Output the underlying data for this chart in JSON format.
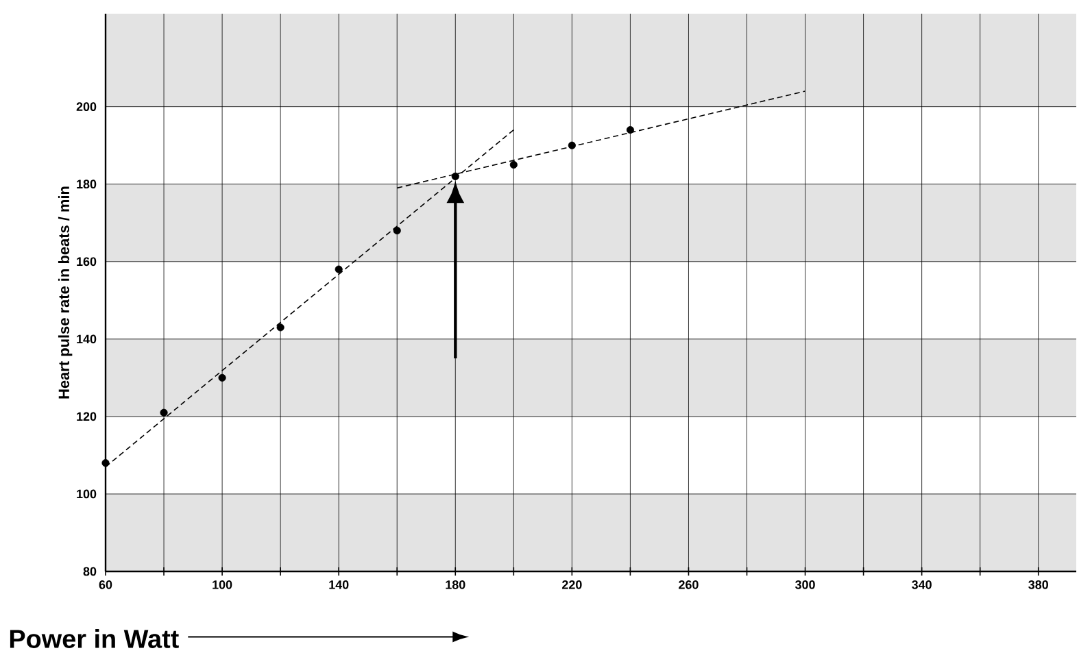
{
  "chart_data": {
    "type": "scatter",
    "xlabel": "Power in Watt",
    "ylabel": "Heart pulse rate in beats / min",
    "xlim": [
      60,
      393
    ],
    "ylim": [
      80,
      224
    ],
    "xticks": [
      60,
      {
        "value": 80,
        "label": null
      },
      100,
      {
        "value": 120,
        "label": null
      },
      140,
      {
        "value": 160,
        "label": null
      },
      180,
      {
        "value": 200,
        "label": null
      },
      220,
      {
        "value": 240,
        "label": null
      },
      260,
      {
        "value": 280,
        "label": null
      },
      300,
      {
        "value": 320,
        "label": null
      },
      340,
      {
        "value": 360,
        "label": null
      },
      380
    ],
    "yticks": [
      80,
      100,
      120,
      140,
      160,
      180,
      200
    ],
    "grid": true,
    "bands": [
      {
        "axis": "y",
        "from": 80,
        "to": 100,
        "color": "#e3e3e3"
      },
      {
        "axis": "y",
        "from": 120,
        "to": 140,
        "color": "#e3e3e3"
      },
      {
        "axis": "y",
        "from": 160,
        "to": 180,
        "color": "#e3e3e3"
      },
      {
        "axis": "y",
        "from": 200,
        "to": 224,
        "color": "#e3e3e3"
      }
    ],
    "series": [
      {
        "marker": "circle",
        "color": "#000000",
        "x": [
          60,
          80,
          100,
          120,
          140,
          160,
          180,
          200,
          220,
          240
        ],
        "values": [
          108,
          121,
          130,
          143,
          158,
          168,
          182,
          185,
          190,
          194
        ]
      },
      {
        "type": "line",
        "line_style": "dashed",
        "marker": "none",
        "color": "#000000",
        "x": [
          60,
          200
        ],
        "values": [
          107,
          194
        ]
      },
      {
        "type": "line",
        "line_style": "dashed",
        "marker": "none",
        "color": "#000000",
        "x": [
          160,
          300
        ],
        "values": [
          179,
          204
        ]
      }
    ]
  }
}
